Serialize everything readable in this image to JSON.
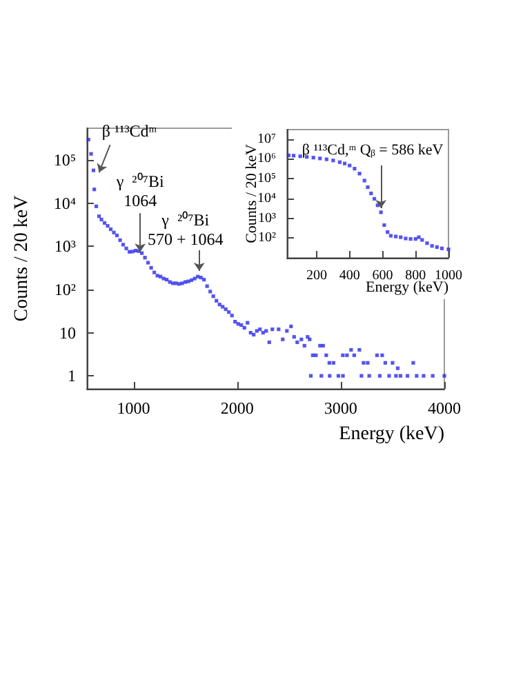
{
  "chart_data": [
    {
      "type": "scatter",
      "xlabel": "Energy (keV)",
      "ylabel": "Counts / 20 keV",
      "log": "y",
      "marker": "square",
      "color": "#2b2bea",
      "x": [
        565,
        590,
        613,
        621,
        640,
        667,
        690,
        720,
        750,
        780,
        810,
        840,
        870,
        900,
        930,
        960,
        990,
        1020,
        1050,
        1080,
        1110,
        1140,
        1170,
        1200,
        1230,
        1260,
        1290,
        1320,
        1350,
        1380,
        1410,
        1440,
        1470,
        1500,
        1530,
        1560,
        1590,
        1620,
        1650,
        1680,
        1710,
        1740,
        1770,
        1800,
        1830,
        1860,
        1890,
        1920,
        1950,
        1980,
        2010,
        2040,
        2070,
        2100,
        2130,
        2160,
        2190,
        2220,
        2250,
        2280,
        2310,
        2340,
        2400,
        2440,
        2480,
        2520,
        2550,
        2580,
        2620,
        2650,
        2680,
        2700,
        2711,
        2730,
        2760,
        2800,
        2813,
        2830,
        2860,
        2890,
        2893,
        2930,
        2977,
        3020,
        3021,
        3060,
        3100,
        3130,
        3180,
        3200,
        3220,
        3260,
        3275,
        3350,
        3377,
        3400,
        3430,
        3467,
        3500,
        3533,
        3550,
        3577,
        3644,
        3700,
        3733,
        3800,
        3888,
        4000
      ],
      "values": [
        300000,
        140000,
        58000,
        21000,
        8500,
        5000,
        4200,
        3500,
        3000,
        2500,
        2100,
        1800,
        1400,
        1100,
        900,
        750,
        760,
        800,
        780,
        700,
        550,
        420,
        320,
        250,
        210,
        200,
        180,
        170,
        150,
        140,
        140,
        135,
        140,
        150,
        155,
        165,
        180,
        200,
        190,
        170,
        120,
        90,
        70,
        55,
        45,
        40,
        35,
        30,
        25,
        18,
        16,
        15,
        13,
        17,
        10,
        9,
        11,
        12,
        10,
        11,
        6,
        12,
        12,
        7,
        11,
        14,
        8,
        6,
        7,
        5,
        8,
        7,
        1,
        3,
        3,
        5,
        1,
        5,
        3,
        2,
        1,
        2,
        1,
        3,
        1,
        3,
        4,
        3,
        4,
        1,
        2,
        2,
        1,
        3,
        1,
        3,
        2,
        1,
        2,
        1,
        1.5,
        1,
        1,
        2,
        1,
        1,
        1,
        1
      ],
      "xlim": [
        550,
        4000
      ],
      "xticks": [
        1000,
        2000,
        3000,
        4000
      ],
      "ylim": [
        0.5,
        550000
      ],
      "yticks": [
        1,
        10,
        {
          "value": 100,
          "label": "10²"
        },
        {
          "value": 1000,
          "label": "10³"
        },
        {
          "value": 10000,
          "label": "10⁴"
        },
        {
          "value": 100000,
          "label": "10⁵"
        }
      ],
      "annotations": [
        {
          "text": "β ¹¹³Cdᵐ",
          "x": 667,
          "y": 52000
        },
        {
          "text": "γ  ²⁰⁷Bi\n1064",
          "x": 1064,
          "y": 750
        },
        {
          "text": "γ  ²⁰⁷Bi\n570 + 1064",
          "x": 1634,
          "y": 270
        }
      ]
    },
    {
      "type": "scatter",
      "xlabel": "Energy (keV)",
      "ylabel": "Counts / 20 keV",
      "log": "y",
      "marker": "square",
      "color": "#2b2bea",
      "x": [
        30,
        60,
        100,
        140,
        180,
        220,
        260,
        300,
        340,
        370,
        400,
        430,
        460,
        490,
        510,
        530,
        550,
        570,
        590,
        610,
        630,
        650,
        680,
        710,
        740,
        770,
        800,
        820,
        840,
        870,
        900,
        930,
        960,
        1000
      ],
      "values": [
        1500000,
        1450000,
        1350000,
        1250000,
        1150000,
        1050000,
        950000,
        830000,
        680000,
        580000,
        460000,
        320000,
        180000,
        80000,
        37000,
        18000,
        9600,
        4500,
        2000,
        450,
        200,
        130,
        120,
        110,
        95,
        90,
        90,
        110,
        80,
        55,
        40,
        35,
        30,
        27
      ],
      "xlim": [
        20,
        1000
      ],
      "xticks": [
        200,
        400,
        600,
        800,
        1000
      ],
      "ylim": [
        10,
        30000000
      ],
      "yticks": [
        {
          "value": 100,
          "label": "10²"
        },
        {
          "value": 1000,
          "label": "10³"
        },
        {
          "value": 10000,
          "label": "10⁴"
        },
        {
          "value": 100000,
          "label": "10⁵"
        },
        {
          "value": 1000000,
          "label": "10⁶"
        },
        {
          "value": 10000000,
          "label": "10⁷"
        }
      ],
      "annotations": [
        {
          "text": "β ¹¹³Cd,ᵐ Qᵦ = 586 keV",
          "x": 590,
          "y": 2000
        }
      ]
    }
  ]
}
